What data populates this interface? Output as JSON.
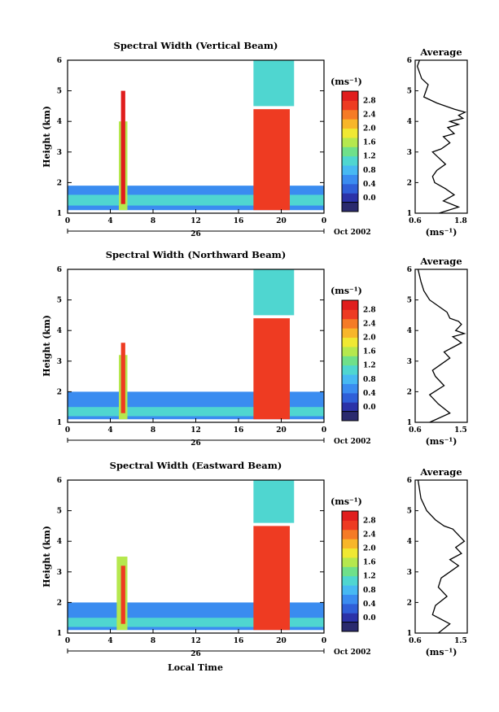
{
  "figure": {
    "xlabel": "Local Time",
    "date_day": "26",
    "date_label": "Oct 2002"
  },
  "colorbar": {
    "unit": "(ms⁻¹)",
    "levels": [
      "0.0",
      "0.4",
      "0.8",
      "1.2",
      "1.6",
      "2.0",
      "2.4",
      "2.8"
    ],
    "colors": [
      "#2a2a6e",
      "#2b32a8",
      "#2f5fd8",
      "#3a8cf0",
      "#47b9f2",
      "#4fd6d0",
      "#6fe08a",
      "#b5e84e",
      "#f0e832",
      "#f8b62a",
      "#f57b26",
      "#ee3b22",
      "#e01d1d"
    ]
  },
  "colors": {
    "frame": "#000000",
    "profile": "#000000"
  },
  "chart_data": [
    {
      "type": "heatmap",
      "title": "Spectral Width (Vertical Beam)",
      "ylabel": "Height (km)",
      "xlim": [
        0,
        24
      ],
      "ylim": [
        1,
        6
      ],
      "xticks": [
        "0",
        "4",
        "8",
        "12",
        "16",
        "20",
        "0"
      ],
      "yticks": [
        "1",
        "2",
        "3",
        "4",
        "5",
        "6"
      ],
      "features": [
        {
          "x0": 0,
          "x1": 24,
          "y0": 1.1,
          "y1": 1.9,
          "level": 0.6
        },
        {
          "x0": 0,
          "x1": 24,
          "y0": 1.25,
          "y1": 1.6,
          "level": 1.0
        },
        {
          "x0": 4.8,
          "x1": 5.6,
          "y0": 1.1,
          "y1": 4.0,
          "level": 1.6
        },
        {
          "x0": 5.0,
          "x1": 5.4,
          "y0": 1.3,
          "y1": 5.0,
          "level": 2.8
        },
        {
          "x0": 17.4,
          "x1": 20.8,
          "y0": 1.1,
          "y1": 4.4,
          "level": 2.6
        },
        {
          "x0": 17.4,
          "x1": 21.2,
          "y0": 4.5,
          "y1": 6.0,
          "level": 1.0
        }
      ]
    },
    {
      "type": "line",
      "title": "Average",
      "xlabel": "(ms⁻¹)",
      "xticks": [
        "0.6",
        "1.8"
      ],
      "yticks": [
        "1",
        "2",
        "3",
        "4",
        "5",
        "6"
      ],
      "xlim": [
        0.6,
        1.8
      ],
      "ylim": [
        1,
        6
      ],
      "x": [
        1.15,
        1.6,
        1.25,
        1.5,
        1.3,
        1.05,
        1.0,
        1.1,
        1.3,
        1.15,
        1.0,
        1.2,
        1.4,
        1.25,
        1.5,
        1.35,
        1.6,
        1.4,
        1.7,
        1.6,
        1.75,
        1.5,
        1.1,
        0.8,
        0.85,
        0.9,
        0.75,
        0.7,
        0.65,
        0.7
      ],
      "y": [
        1.0,
        1.2,
        1.4,
        1.6,
        1.8,
        2.0,
        2.2,
        2.4,
        2.6,
        2.8,
        3.0,
        3.1,
        3.3,
        3.5,
        3.6,
        3.8,
        3.9,
        4.0,
        4.1,
        4.2,
        4.3,
        4.4,
        4.6,
        4.8,
        5.0,
        5.2,
        5.4,
        5.6,
        5.8,
        6.0
      ]
    },
    {
      "type": "heatmap",
      "title": "Spectral Width (Northward Beam)",
      "ylabel": "Height (km)",
      "xlim": [
        0,
        24
      ],
      "ylim": [
        1,
        6
      ],
      "xticks": [
        "0",
        "4",
        "8",
        "12",
        "16",
        "20",
        "0"
      ],
      "yticks": [
        "1",
        "2",
        "3",
        "4",
        "5",
        "6"
      ],
      "features": [
        {
          "x0": 0,
          "x1": 24,
          "y0": 1.1,
          "y1": 2.0,
          "level": 0.6
        },
        {
          "x0": 0,
          "x1": 24,
          "y0": 1.2,
          "y1": 1.5,
          "level": 1.0
        },
        {
          "x0": 4.8,
          "x1": 5.6,
          "y0": 1.1,
          "y1": 3.2,
          "level": 1.6
        },
        {
          "x0": 5.0,
          "x1": 5.4,
          "y0": 1.3,
          "y1": 3.6,
          "level": 2.6
        },
        {
          "x0": 17.4,
          "x1": 20.8,
          "y0": 1.1,
          "y1": 4.4,
          "level": 2.6
        },
        {
          "x0": 17.4,
          "x1": 21.2,
          "y0": 4.5,
          "y1": 6.0,
          "level": 1.0
        }
      ]
    },
    {
      "type": "line",
      "title": "Average",
      "xlabel": "(ms⁻¹)",
      "xticks": [
        "0.6",
        "1.5"
      ],
      "yticks": [
        "1",
        "2",
        "3",
        "4",
        "5",
        "6"
      ],
      "xlim": [
        0.6,
        1.5
      ],
      "ylim": [
        1,
        6
      ],
      "x": [
        0.85,
        1.2,
        1.0,
        0.85,
        1.1,
        0.95,
        0.9,
        1.05,
        1.2,
        1.1,
        1.3,
        1.4,
        1.25,
        1.45,
        1.3,
        1.4,
        1.35,
        1.2,
        1.15,
        1.0,
        0.85,
        0.75,
        0.7,
        0.65
      ],
      "y": [
        1.0,
        1.3,
        1.6,
        1.9,
        2.2,
        2.5,
        2.7,
        2.9,
        3.1,
        3.3,
        3.5,
        3.6,
        3.8,
        3.9,
        4.0,
        4.2,
        4.3,
        4.4,
        4.6,
        4.8,
        5.0,
        5.3,
        5.6,
        6.0
      ]
    },
    {
      "type": "heatmap",
      "title": "Spectral Width (Eastward Beam)",
      "ylabel": "Height (km)",
      "xlim": [
        0,
        24
      ],
      "ylim": [
        1,
        6
      ],
      "xticks": [
        "0",
        "4",
        "8",
        "12",
        "16",
        "20",
        "0"
      ],
      "yticks": [
        "1",
        "2",
        "3",
        "4",
        "5",
        "6"
      ],
      "features": [
        {
          "x0": 0,
          "x1": 24,
          "y0": 1.1,
          "y1": 2.0,
          "level": 0.6
        },
        {
          "x0": 0,
          "x1": 24,
          "y0": 1.2,
          "y1": 1.5,
          "level": 1.0
        },
        {
          "x0": 4.6,
          "x1": 5.6,
          "y0": 1.1,
          "y1": 3.5,
          "level": 1.6
        },
        {
          "x0": 5.0,
          "x1": 5.4,
          "y0": 1.3,
          "y1": 3.2,
          "level": 2.6
        },
        {
          "x0": 17.4,
          "x1": 20.8,
          "y0": 1.1,
          "y1": 4.5,
          "level": 2.6
        },
        {
          "x0": 17.4,
          "x1": 21.2,
          "y0": 4.6,
          "y1": 6.0,
          "level": 1.0
        }
      ]
    },
    {
      "type": "line",
      "title": "Average",
      "xlabel": "(ms⁻¹)",
      "xticks": [
        "0.6",
        "1.5"
      ],
      "yticks": [
        "1",
        "2",
        "3",
        "4",
        "5",
        "6"
      ],
      "xlim": [
        0.6,
        1.5
      ],
      "ylim": [
        1,
        6
      ],
      "x": [
        1.0,
        1.2,
        0.9,
        0.95,
        1.15,
        1.0,
        1.05,
        1.2,
        1.35,
        1.2,
        1.4,
        1.3,
        1.45,
        1.35,
        1.25,
        1.1,
        0.95,
        0.8,
        0.7,
        0.65
      ],
      "y": [
        1.0,
        1.3,
        1.6,
        1.9,
        2.2,
        2.5,
        2.8,
        3.0,
        3.2,
        3.4,
        3.6,
        3.8,
        4.0,
        4.2,
        4.4,
        4.5,
        4.7,
        5.0,
        5.4,
        6.0
      ]
    }
  ]
}
